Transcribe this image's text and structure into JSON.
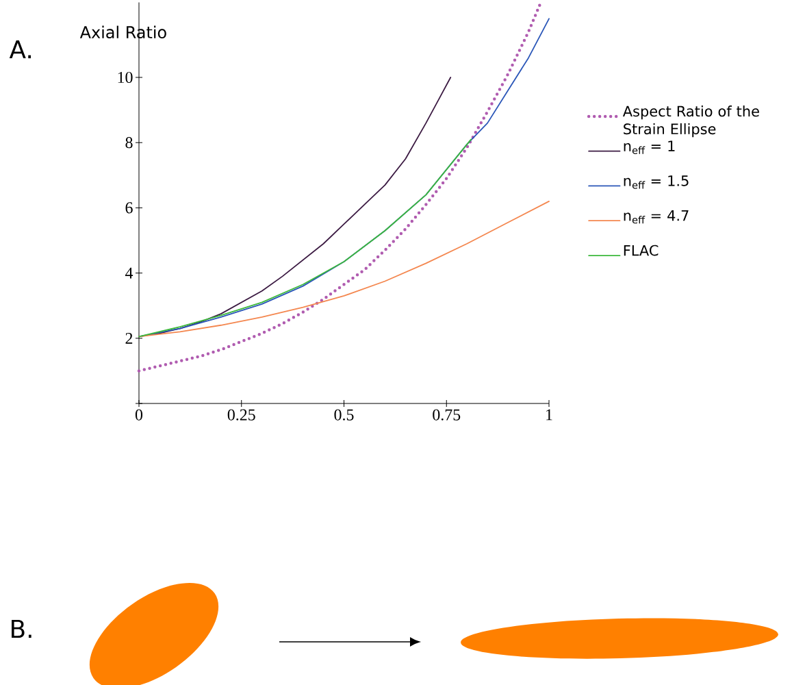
{
  "chart_data": {
    "type": "line",
    "ylabel": "Axial Ratio",
    "xlim": [
      0,
      1
    ],
    "ylim": [
      0,
      12.3
    ],
    "xticks": [
      0,
      0.25,
      0.5,
      0.75,
      1
    ],
    "yticks": [
      {
        "value": 0,
        "label": null
      },
      2,
      4,
      6,
      8,
      10
    ],
    "legend": "right",
    "marker": "none",
    "annotations": [
      "A.",
      "B."
    ],
    "series": [
      {
        "name": "Aspect Ratio of the Strain Ellipse",
        "color": "#b05cb0",
        "line_style": "dotted",
        "x": [
          0,
          0.05,
          0.1,
          0.15,
          0.2,
          0.25,
          0.3,
          0.35,
          0.4,
          0.45,
          0.5,
          0.55,
          0.6,
          0.65,
          0.7,
          0.75,
          0.8,
          0.85,
          0.9,
          0.95,
          0.98
        ],
        "values": [
          1,
          1.15,
          1.3,
          1.45,
          1.65,
          1.9,
          2.15,
          2.45,
          2.8,
          3.2,
          3.65,
          4.1,
          4.7,
          5.35,
          6.1,
          6.9,
          7.85,
          8.95,
          10.1,
          11.4,
          12.3
        ]
      },
      {
        "name": "n$_{eff}$ = 1",
        "color": "#3b1a42",
        "line_style": "solid",
        "x": [
          0,
          0.05,
          0.1,
          0.15,
          0.2,
          0.25,
          0.3,
          0.35,
          0.4,
          0.45,
          0.5,
          0.55,
          0.6,
          0.65,
          0.7,
          0.73,
          0.76
        ],
        "values": [
          2.05,
          2.15,
          2.3,
          2.5,
          2.75,
          3.1,
          3.45,
          3.9,
          4.4,
          4.9,
          5.5,
          6.1,
          6.7,
          7.5,
          8.6,
          9.3,
          10
        ]
      },
      {
        "name": "n$_{eff}$ = 1.5",
        "color": "#2a56b8",
        "line_style": "solid",
        "x": [
          0,
          0.1,
          0.2,
          0.3,
          0.4,
          0.5,
          0.6,
          0.7,
          0.8,
          0.85,
          0.9,
          0.95,
          1
        ],
        "values": [
          2.05,
          2.3,
          2.65,
          3.05,
          3.6,
          4.35,
          5.3,
          6.4,
          7.95,
          8.6,
          9.6,
          10.6,
          11.8
        ]
      },
      {
        "name": "n$_{eff}$ = 4.7",
        "color": "#f4874f",
        "line_style": "solid",
        "x": [
          0,
          0.1,
          0.2,
          0.3,
          0.4,
          0.5,
          0.6,
          0.7,
          0.8,
          0.9,
          1
        ],
        "values": [
          2.05,
          2.2,
          2.4,
          2.65,
          2.95,
          3.3,
          3.75,
          4.3,
          4.9,
          5.55,
          6.2
        ]
      },
      {
        "name": "FLAC",
        "color": "#3cb83c",
        "line_style": "solid",
        "x": [
          0,
          0.1,
          0.2,
          0.3,
          0.4,
          0.5,
          0.6,
          0.7,
          0.81
        ],
        "values": [
          2.05,
          2.35,
          2.7,
          3.1,
          3.65,
          4.35,
          5.3,
          6.4,
          8.1
        ]
      }
    ]
  }
}
